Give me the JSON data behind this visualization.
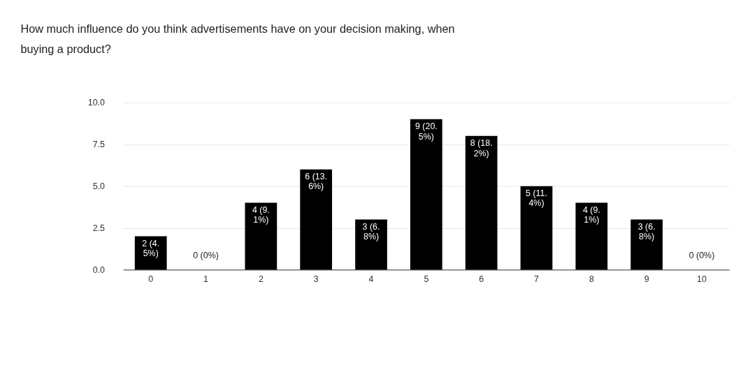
{
  "chart_data": {
    "type": "bar",
    "title": "How much influence do you think advertisements have on your decision making, when buying a product?",
    "categories": [
      "0",
      "1",
      "2",
      "3",
      "4",
      "5",
      "6",
      "7",
      "8",
      "9",
      "10"
    ],
    "series": [
      {
        "color": "#000000",
        "values": [
          2,
          0,
          4,
          6,
          3,
          9,
          8,
          5,
          4,
          3,
          0
        ]
      }
    ],
    "value_labels": [
      "2 (4.5%)",
      "0 (0%)",
      "4 (9.1%)",
      "6 (13.6%)",
      "3 (6.8%)",
      "9 (20.5%)",
      "8 (18.2%)",
      "5 (11.4%)",
      "4 (9.1%)",
      "3 (6.8%)",
      "0 (0%)"
    ],
    "ylim": [
      0,
      10
    ],
    "yticks": [
      {
        "value": 0,
        "label": "0.0"
      },
      {
        "value": 2.5,
        "label": "2.5"
      },
      {
        "value": 5,
        "label": "5.0"
      },
      {
        "value": 7.5,
        "label": "7.5"
      },
      {
        "value": 10,
        "label": "10.0"
      }
    ],
    "grid": "y"
  }
}
